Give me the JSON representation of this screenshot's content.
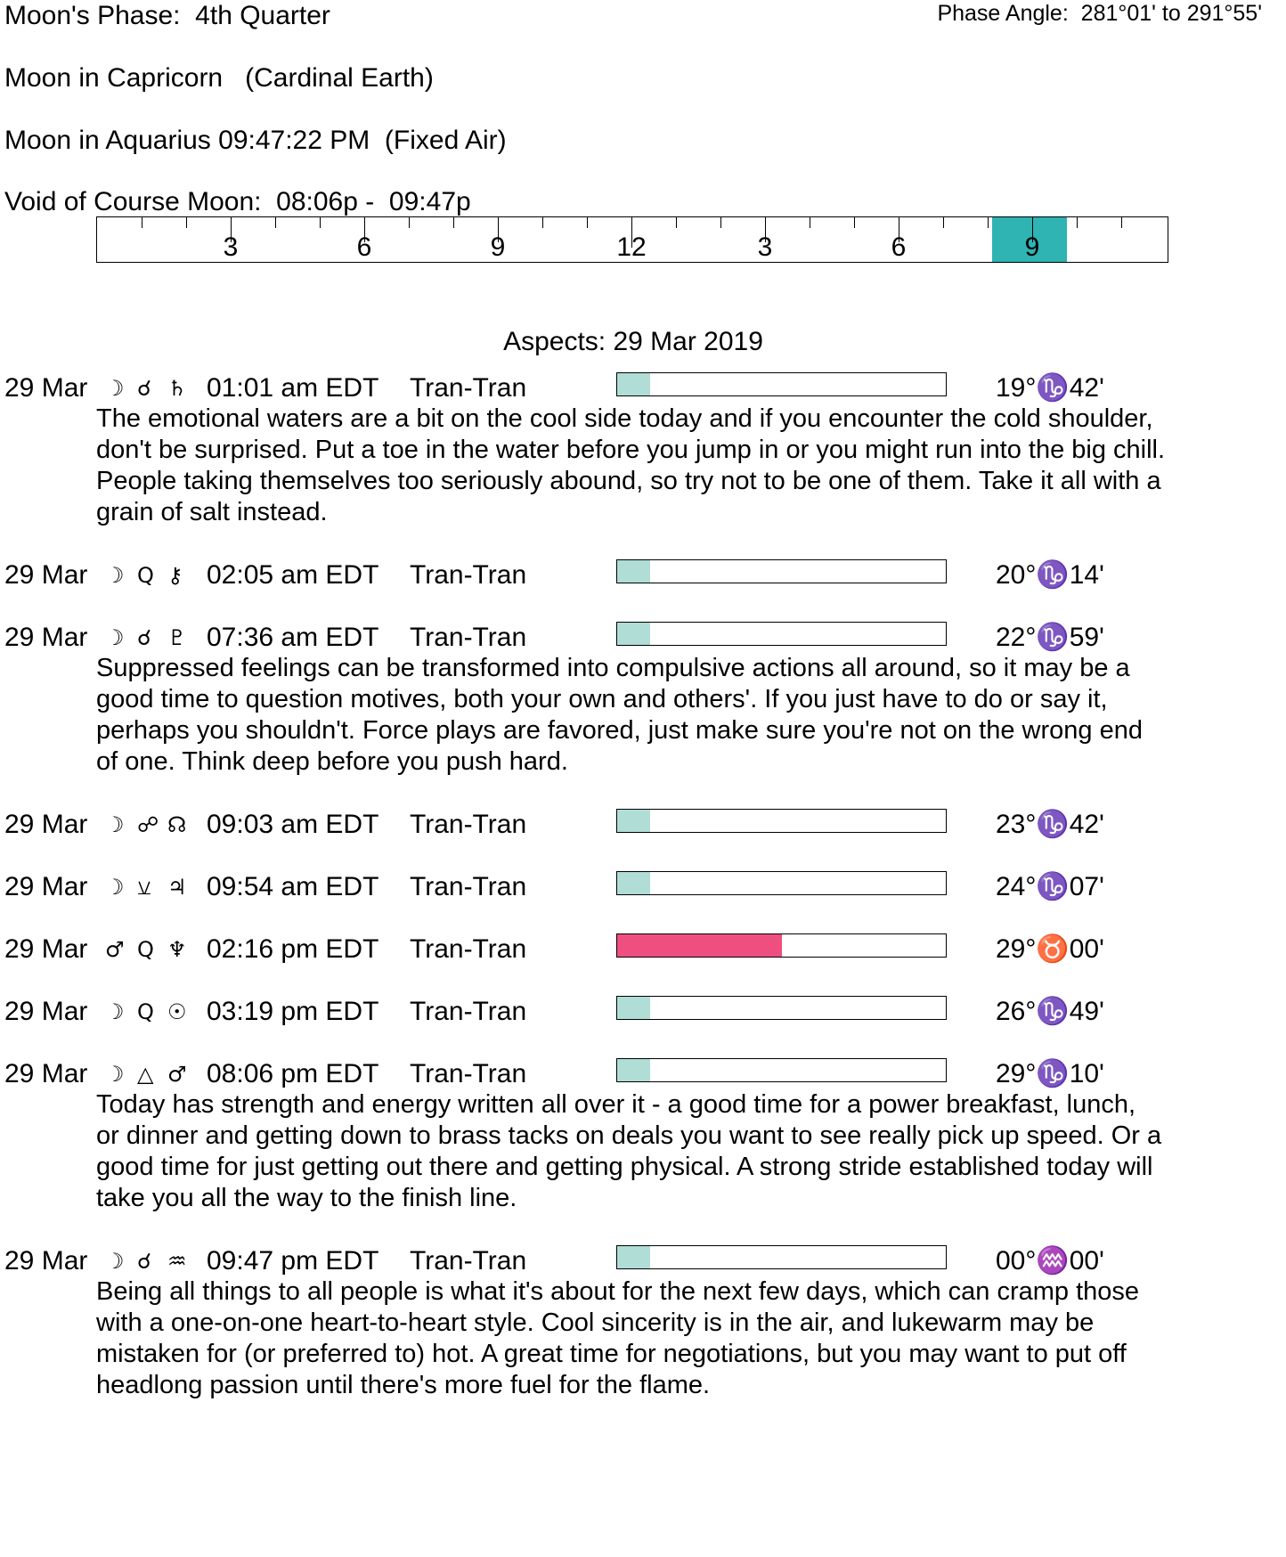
{
  "header": {
    "phase": "Moon's Phase:  4th Quarter",
    "phase_angle": "Phase Angle:  281°01' to 291°55'",
    "moon_sign": "Moon in Capricorn   (Cardinal Earth)",
    "moon_ingress": "Moon in Aquarius 09:47:22 PM  (Fixed Air)",
    "void_of_course": "Void of Course Moon:  08:06p -  09:47p"
  },
  "timeline": {
    "labels": [
      "3",
      "6",
      "9",
      "12",
      "3",
      "6",
      "9"
    ],
    "label_hours": [
      3,
      6,
      9,
      12,
      15,
      18,
      21
    ],
    "void_start_hour": 20.1,
    "void_end_hour": 21.78,
    "highlight_color": "#2fb3b3"
  },
  "aspects_title": "Aspects: 29 Mar 2019",
  "colors": {
    "bar_light": "#b0ddd6",
    "bar_strong": "#ef4f80"
  },
  "aspects": [
    {
      "date": "29 Mar",
      "p1": "☽",
      "asp": "☌",
      "p2": "♄",
      "time": "01:01 am EDT",
      "type": "Tran-Tran",
      "strength": 0.1,
      "color": "#b0ddd6",
      "pos": "19°♑42'",
      "desc": [
        "The emotional waters are a bit on the cool side today and if you encounter the cold shoulder,",
        "don't be surprised. Put a toe in the water before you jump in or you might run into the big chill.",
        "People taking themselves too seriously abound, so try not to be one of them. Take it all with a",
        "grain of salt instead."
      ]
    },
    {
      "date": "29 Mar",
      "p1": "☽",
      "asp": "Q",
      "p2": "⚷",
      "time": "02:05 am EDT",
      "type": "Tran-Tran",
      "strength": 0.1,
      "color": "#b0ddd6",
      "pos": "20°♑14'",
      "desc": []
    },
    {
      "date": "29 Mar",
      "p1": "☽",
      "asp": "☌",
      "p2": "♇",
      "time": "07:36 am EDT",
      "type": "Tran-Tran",
      "strength": 0.1,
      "color": "#b0ddd6",
      "pos": "22°♑59'",
      "desc": [
        "Suppressed feelings can be transformed into compulsive actions all around, so it may be a",
        "good time to question motives, both your own and others'. If you just have to do or say it,",
        "perhaps you shouldn't. Force plays are favored, just make sure you're not on the wrong end",
        "of one. Think deep before you push hard."
      ]
    },
    {
      "date": "29 Mar",
      "p1": "☽",
      "asp": "☍",
      "p2": "☊",
      "time": "09:03 am EDT",
      "type": "Tran-Tran",
      "strength": 0.1,
      "color": "#b0ddd6",
      "pos": "23°♑42'",
      "desc": []
    },
    {
      "date": "29 Mar",
      "p1": "☽",
      "asp": "⚺",
      "p2": "♃",
      "time": "09:54 am EDT",
      "type": "Tran-Tran",
      "strength": 0.1,
      "color": "#b0ddd6",
      "pos": "24°♑07'",
      "desc": []
    },
    {
      "date": "29 Mar",
      "p1": "♂",
      "asp": "Q",
      "p2": "♆",
      "time": "02:16 pm EDT",
      "type": "Tran-Tran",
      "strength": 0.5,
      "color": "#ef4f80",
      "pos": "29°♉00'",
      "desc": []
    },
    {
      "date": "29 Mar",
      "p1": "☽",
      "asp": "Q",
      "p2": "☉",
      "time": "03:19 pm EDT",
      "type": "Tran-Tran",
      "strength": 0.1,
      "color": "#b0ddd6",
      "pos": "26°♑49'",
      "desc": []
    },
    {
      "date": "29 Mar",
      "p1": "☽",
      "asp": "△",
      "p2": "♂",
      "time": "08:06 pm EDT",
      "type": "Tran-Tran",
      "strength": 0.1,
      "color": "#b0ddd6",
      "pos": "29°♑10'",
      "desc": [
        "Today has strength and energy written all over it - a good time for a power breakfast, lunch,",
        "or dinner and getting down to brass tacks on deals you want to see really pick up speed. Or a",
        "good time for just getting out there and getting physical. A strong stride established today will",
        "take you all the way to the finish line."
      ]
    },
    {
      "date": "29 Mar",
      "p1": "☽",
      "asp": "☌",
      "p2": "♒",
      "time": "09:47 pm EDT",
      "type": "Tran-Tran",
      "strength": 0.1,
      "color": "#b0ddd6",
      "pos": "00°♒00'",
      "desc": [
        "Being all things to all people is what it's about for the next few days, which can cramp those",
        "with a one-on-one heart-to-heart style. Cool sincerity is in the air, and lukewarm may be",
        "mistaken for (or preferred to) hot. A great time for negotiations, but you may want to put off",
        "headlong passion until there's more fuel for the flame."
      ]
    }
  ]
}
